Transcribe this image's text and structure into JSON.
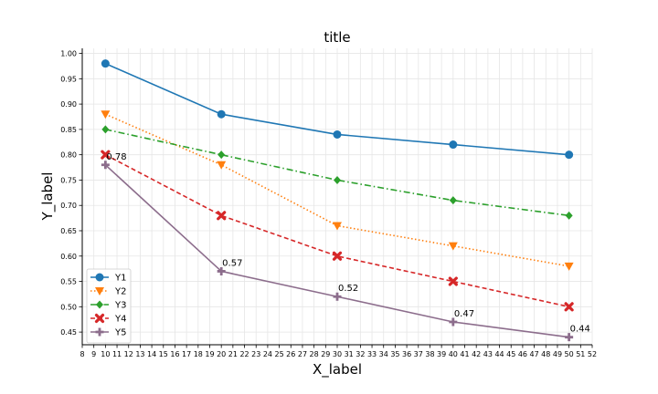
{
  "chart_data": {
    "type": "line",
    "title": "title",
    "xlabel": "X_label",
    "ylabel": "Y_label",
    "x": [
      10,
      20,
      30,
      40,
      50
    ],
    "xlim": [
      8,
      52
    ],
    "ylim": [
      0.425,
      1.01
    ],
    "x_ticks": [
      8,
      9,
      10,
      11,
      12,
      13,
      14,
      15,
      16,
      17,
      18,
      19,
      20,
      21,
      22,
      23,
      24,
      25,
      26,
      27,
      28,
      29,
      30,
      31,
      32,
      33,
      34,
      35,
      36,
      37,
      38,
      39,
      40,
      41,
      42,
      43,
      44,
      45,
      46,
      47,
      48,
      49,
      50,
      51,
      52
    ],
    "y_ticks": [
      "0.45",
      "0.50",
      "0.55",
      "0.60",
      "0.65",
      "0.70",
      "0.75",
      "0.80",
      "0.85",
      "0.90",
      "0.95",
      "1.00"
    ],
    "grid": true,
    "legend_position": "lower-left",
    "series": [
      {
        "name": "Y1",
        "values": [
          0.98,
          0.88,
          0.84,
          0.82,
          0.8
        ],
        "color": "#1f77b4",
        "dash": "solid",
        "marker": "circle"
      },
      {
        "name": "Y2",
        "values": [
          0.88,
          0.78,
          0.66,
          0.62,
          0.58
        ],
        "color": "#ff7f0e",
        "dash": "dotted",
        "marker": "triangle-down"
      },
      {
        "name": "Y3",
        "values": [
          0.85,
          0.8,
          0.75,
          0.71,
          0.68
        ],
        "color": "#2ca02c",
        "dash": "dashdot",
        "marker": "diamond"
      },
      {
        "name": "Y4",
        "values": [
          0.8,
          0.68,
          0.6,
          0.55,
          0.5
        ],
        "color": "#d62728",
        "dash": "dashed",
        "marker": "x"
      },
      {
        "name": "Y5",
        "values": [
          0.78,
          0.57,
          0.52,
          0.47,
          0.44
        ],
        "color": "#8c6d8c",
        "dash": "solid",
        "marker": "plus"
      }
    ],
    "annotations": [
      {
        "series": "Y5",
        "x": 10,
        "y": 0.78,
        "text": "0.78"
      },
      {
        "series": "Y5",
        "x": 20,
        "y": 0.57,
        "text": "0.57"
      },
      {
        "series": "Y5",
        "x": 30,
        "y": 0.52,
        "text": "0.52"
      },
      {
        "series": "Y5",
        "x": 40,
        "y": 0.47,
        "text": "0.47"
      },
      {
        "series": "Y5",
        "x": 50,
        "y": 0.44,
        "text": "0.44"
      }
    ]
  }
}
